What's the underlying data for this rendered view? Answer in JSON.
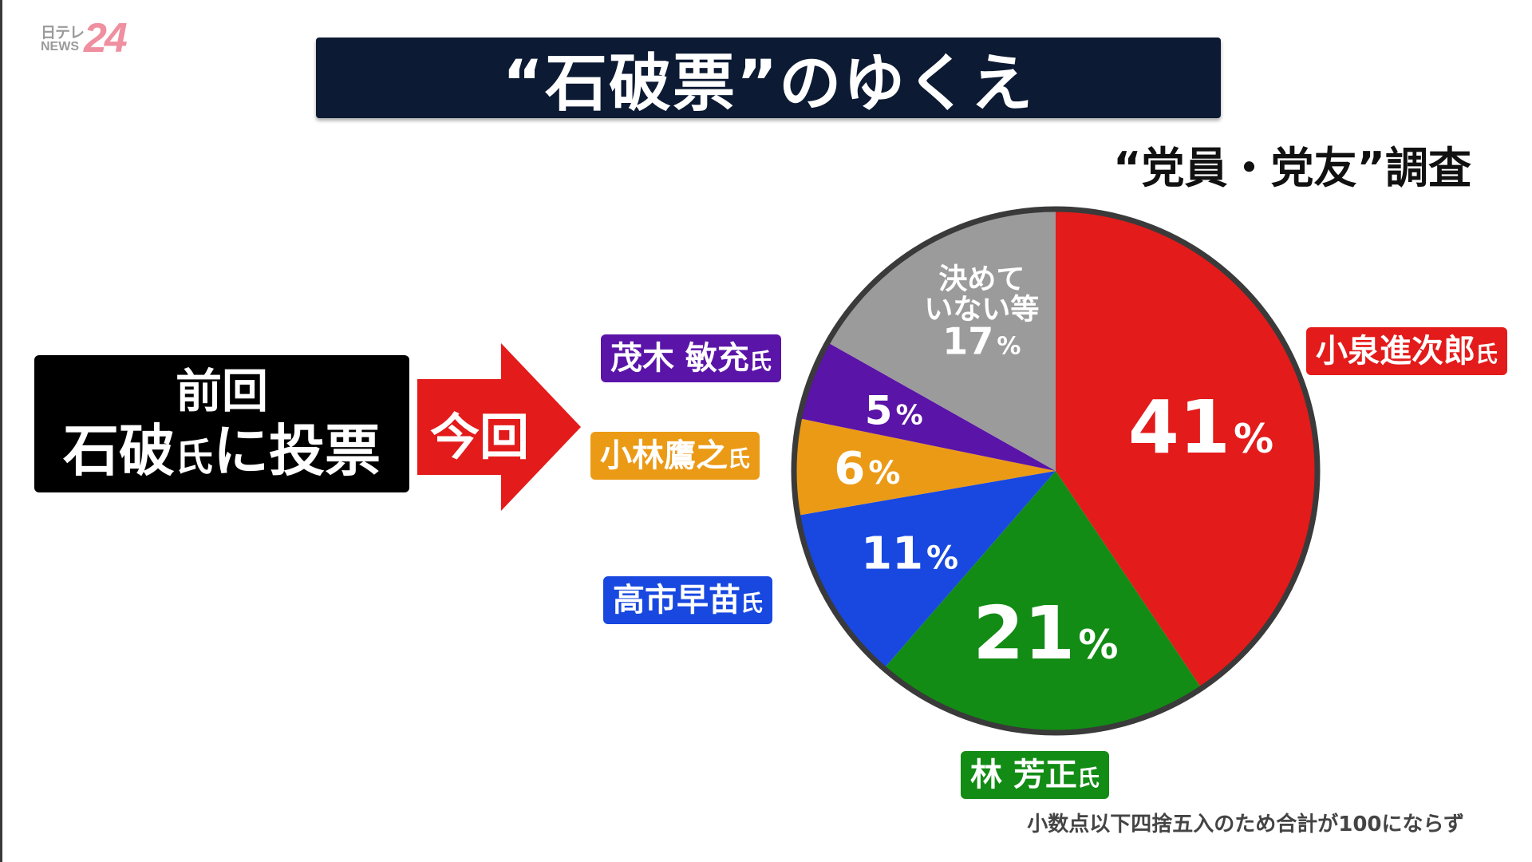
{
  "logo": {
    "top": "日テレ",
    "bottom": "NEWS",
    "number": "24"
  },
  "title": "“石破票”のゆくえ",
  "subtitle": "“党員・党友”調査",
  "previous_box": {
    "line1": "前回",
    "line2_main1": "石破",
    "line2_small": "氏",
    "line2_main2": "に投票"
  },
  "arrow": {
    "label": "今回",
    "color": "#e31b1b"
  },
  "candidates": {
    "koizumi": {
      "name": "小泉進次郎",
      "suffix": "氏"
    },
    "motegi": {
      "name": "茂木 敏充",
      "suffix": "氏"
    },
    "kobayashi": {
      "name": "小林鷹之",
      "suffix": "氏"
    },
    "takaichi": {
      "name": "高市早苗",
      "suffix": "氏"
    },
    "hayashi": {
      "name": "林 芳正",
      "suffix": "氏"
    }
  },
  "footnote": "小数点以下四捨五入のため合計が100にならず",
  "chart_data": {
    "type": "pie",
    "title": "“石破票”のゆくえ",
    "subtitle": "“党員・党友”調査",
    "start_angle_deg": 0,
    "direction": "clockwise",
    "slices": [
      {
        "key": "koizumi",
        "label": "小泉進次郎氏",
        "value": 41,
        "value_label": "41",
        "color": "#e31b1b"
      },
      {
        "key": "hayashi",
        "label": "林 芳正氏",
        "value": 21,
        "value_label": "21",
        "color": "#128c14"
      },
      {
        "key": "takaichi",
        "label": "高市早苗氏",
        "value": 11,
        "value_label": "11",
        "color": "#1848e0"
      },
      {
        "key": "kobayashi",
        "label": "小林鷹之氏",
        "value": 6,
        "value_label": "6",
        "color": "#eb9a16"
      },
      {
        "key": "motegi",
        "label": "茂木 敏充氏",
        "value": 5,
        "value_label": "5",
        "color": "#5b14a8"
      },
      {
        "key": "undecided",
        "label": "決めていない等",
        "value": 17,
        "value_label": "17",
        "color": "#9b9b9b",
        "inner_label_lines": [
          "決めて",
          "いない等"
        ]
      }
    ],
    "percent_sign": "%",
    "annotation": "小数点以下四捨五入のため合計が100にならず"
  }
}
